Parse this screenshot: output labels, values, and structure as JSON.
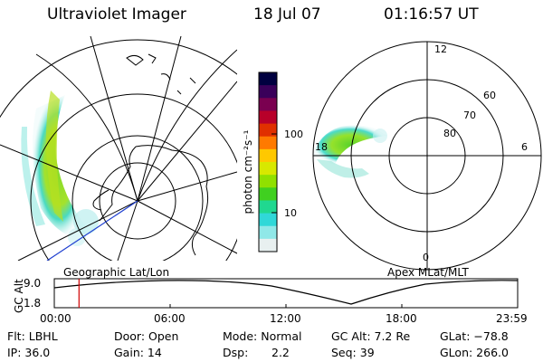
{
  "header": {
    "title": "Ultraviolet Imager",
    "date": "18 Jul 07",
    "time": "01:16:57 UT"
  },
  "colorbar": {
    "label": "photon cm⁻²s⁻¹",
    "ticks": [
      "100",
      "10"
    ],
    "colors": [
      "#000040",
      "#3a005a",
      "#7a0050",
      "#b8002a",
      "#e03000",
      "#ff7a00",
      "#ffc800",
      "#d8e800",
      "#90e000",
      "#40d020",
      "#20d890",
      "#30d8d8",
      "#90e8e8",
      "#e8f0f0"
    ]
  },
  "left_map": {
    "caption": "Geographic Lat/Lon"
  },
  "right_map": {
    "caption": "Apex MLat/MLT",
    "mlt_labels": [
      "12",
      "18",
      "6",
      "0"
    ],
    "lat_labels": [
      "60",
      "70",
      "80"
    ]
  },
  "timeline": {
    "ylabel": "GC Alt",
    "yticks": [
      "9.0",
      "1.8"
    ],
    "xticks": [
      "00:00",
      "06:00",
      "12:00",
      "18:00",
      "23:59"
    ],
    "marker_time_hours": 1.28
  },
  "info": {
    "filter": "Flt: LBHL",
    "ip": "IP: 36.0",
    "door": "Door: Open",
    "gain": "Gain: 14",
    "mode": "Mode: Normal",
    "dsp_label": "Dsp:",
    "dsp_value": "2.2",
    "gc_alt": "GC Alt: 7.2 Re",
    "seq": "Seq: 39",
    "glat": "GLat: −78.8",
    "glon": "GLon: 266.0"
  }
}
